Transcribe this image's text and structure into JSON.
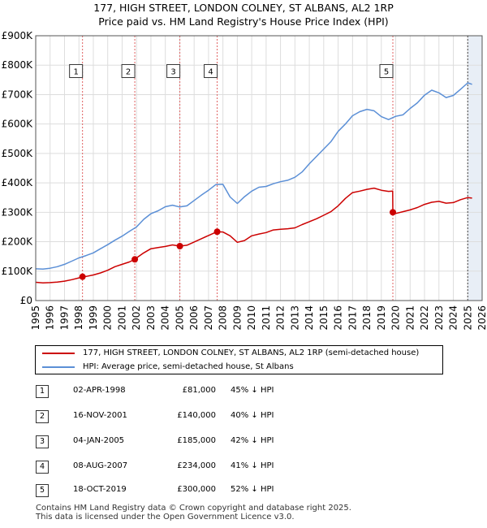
{
  "header": {
    "title_line1": "177, HIGH STREET, LONDON COLNEY, ST ALBANS, AL2 1RP",
    "title_line2": "Price paid vs. HM Land Registry's House Price Index (HPI)"
  },
  "colors": {
    "property": "#cc0000",
    "hpi": "#5b8fd6",
    "grid": "#dddddd",
    "plot_bg": "#ffffff",
    "forecast_shade": "#e8eef6",
    "vline": "#e06060"
  },
  "chart_data": {
    "type": "line",
    "title": "177, HIGH STREET, LONDON COLNEY, ST ALBANS, AL2 1RP",
    "subtitle": "Price paid vs. HM Land Registry's House Price Index (HPI)",
    "xlim": [
      1995,
      2026
    ],
    "ylim": [
      0,
      900000
    ],
    "x_ticks": [
      1995,
      1996,
      1997,
      1998,
      1999,
      2000,
      2001,
      2002,
      2003,
      2004,
      2005,
      2006,
      2007,
      2008,
      2009,
      2010,
      2011,
      2012,
      2013,
      2014,
      2015,
      2016,
      2017,
      2018,
      2019,
      2020,
      2021,
      2022,
      2023,
      2024,
      2025,
      2026
    ],
    "x_tick_labels": [
      "1995",
      "1996",
      "1997",
      "1998",
      "1999",
      "2000",
      "2001",
      "2002",
      "2003",
      "2004",
      "2005",
      "2006",
      "2007",
      "2008",
      "2009",
      "2010",
      "2011",
      "2012",
      "2013",
      "2014",
      "2015",
      "2016",
      "2017",
      "2018",
      "2019",
      "2020",
      "2021",
      "2022",
      "2023",
      "2024",
      "2025",
      "2026"
    ],
    "y_ticks": [
      0,
      100000,
      200000,
      300000,
      400000,
      500000,
      600000,
      700000,
      800000,
      900000
    ],
    "y_tick_labels": [
      "£0",
      "£100K",
      "£200K",
      "£300K",
      "£400K",
      "£500K",
      "£600K",
      "£700K",
      "£800K",
      "£900K"
    ],
    "forecast_start": 2025.0,
    "series": [
      {
        "name": "177, HIGH STREET, LONDON COLNEY, ST ALBANS, AL2 1RP (semi-detached house)",
        "color": "#cc0000",
        "x": [
          1995.0,
          1995.5,
          1996.0,
          1996.5,
          1997.0,
          1997.5,
          1998.0,
          1998.25,
          1998.5,
          1999.0,
          1999.5,
          2000.0,
          2000.5,
          2001.0,
          2001.5,
          2001.88,
          2002.0,
          2002.5,
          2003.0,
          2003.5,
          2004.0,
          2004.5,
          2005.01,
          2005.5,
          2006.0,
          2006.5,
          2007.0,
          2007.6,
          2008.0,
          2008.5,
          2009.0,
          2009.5,
          2010.0,
          2010.5,
          2011.0,
          2011.5,
          2012.0,
          2012.5,
          2013.0,
          2013.5,
          2014.0,
          2014.5,
          2015.0,
          2015.5,
          2016.0,
          2016.5,
          2017.0,
          2017.5,
          2018.0,
          2018.5,
          2019.0,
          2019.5,
          2019.79,
          2019.8,
          2020.0,
          2020.5,
          2021.0,
          2021.5,
          2022.0,
          2022.5,
          2023.0,
          2023.5,
          2024.0,
          2024.5,
          2025.0,
          2025.3
        ],
        "y": [
          62000,
          60000,
          61000,
          63000,
          66000,
          71000,
          77000,
          81000,
          82000,
          87000,
          94000,
          103000,
          115000,
          123000,
          131000,
          140000,
          145000,
          162000,
          176000,
          180000,
          184000,
          189000,
          185000,
          188000,
          199000,
          210000,
          221000,
          234000,
          233000,
          220000,
          198000,
          204000,
          220000,
          226000,
          231000,
          240000,
          242000,
          244000,
          247000,
          258000,
          268000,
          278000,
          290000,
          302000,
          322000,
          347000,
          367000,
          372000,
          378000,
          382000,
          375000,
          371000,
          372000,
          300000,
          296000,
          302000,
          308000,
          316000,
          327000,
          334000,
          337000,
          331000,
          333000,
          343000,
          350000,
          348000
        ]
      },
      {
        "name": "HPI: Average price, semi-detached house, St Albans",
        "color": "#5b8fd6",
        "x": [
          1995.0,
          1995.5,
          1996.0,
          1996.5,
          1997.0,
          1997.5,
          1998.0,
          1998.5,
          1999.0,
          1999.5,
          2000.0,
          2000.5,
          2001.0,
          2001.5,
          2002.0,
          2002.5,
          2003.0,
          2003.5,
          2004.0,
          2004.5,
          2005.0,
          2005.5,
          2006.0,
          2006.5,
          2007.0,
          2007.5,
          2008.0,
          2008.5,
          2009.0,
          2009.5,
          2010.0,
          2010.5,
          2011.0,
          2011.5,
          2012.0,
          2012.5,
          2013.0,
          2013.5,
          2014.0,
          2014.5,
          2015.0,
          2015.5,
          2016.0,
          2016.5,
          2017.0,
          2017.5,
          2018.0,
          2018.5,
          2019.0,
          2019.5,
          2020.0,
          2020.5,
          2021.0,
          2021.5,
          2022.0,
          2022.5,
          2023.0,
          2023.5,
          2024.0,
          2024.5,
          2025.0,
          2025.3
        ],
        "y": [
          108000,
          107000,
          110000,
          115000,
          123000,
          134000,
          145000,
          153000,
          162000,
          176000,
          190000,
          205000,
          219000,
          235000,
          250000,
          276000,
          295000,
          305000,
          319000,
          324000,
          318000,
          322000,
          340000,
          358000,
          375000,
          394000,
          395000,
          352000,
          330000,
          353000,
          372000,
          385000,
          388000,
          397000,
          404000,
          409000,
          419000,
          437000,
          465000,
          490000,
          515000,
          540000,
          575000,
          600000,
          628000,
          642000,
          650000,
          645000,
          625000,
          615000,
          626000,
          631000,
          653000,
          672000,
          698000,
          715000,
          706000,
          690000,
          697000,
          718000,
          740000,
          735000
        ]
      }
    ],
    "sales": [
      {
        "id": "1",
        "date": "02-APR-1998",
        "x": 1998.25,
        "price": 81000,
        "price_label": "£81,000",
        "hpi": "45% ↓ HPI"
      },
      {
        "id": "2",
        "date": "16-NOV-2001",
        "x": 2001.88,
        "price": 140000,
        "price_label": "£140,000",
        "hpi": "40% ↓ HPI"
      },
      {
        "id": "3",
        "date": "04-JAN-2005",
        "x": 2005.01,
        "price": 185000,
        "price_label": "£185,000",
        "hpi": "42% ↓ HPI"
      },
      {
        "id": "4",
        "date": "08-AUG-2007",
        "x": 2007.6,
        "price": 234000,
        "price_label": "£234,000",
        "hpi": "41% ↓ HPI"
      },
      {
        "id": "5",
        "date": "18-OCT-2019",
        "x": 2019.8,
        "price": 300000,
        "price_label": "£300,000",
        "hpi": "52% ↓ HPI"
      }
    ],
    "marker_label_y": 780000
  },
  "legend": {
    "property_label": "177, HIGH STREET, LONDON COLNEY, ST ALBANS, AL2 1RP (semi-detached house)",
    "hpi_label": "HPI: Average price, semi-detached house, St Albans"
  },
  "footer": {
    "line1": "Contains HM Land Registry data © Crown copyright and database right 2025.",
    "line2": "This data is licensed under the Open Government Licence v3.0."
  }
}
